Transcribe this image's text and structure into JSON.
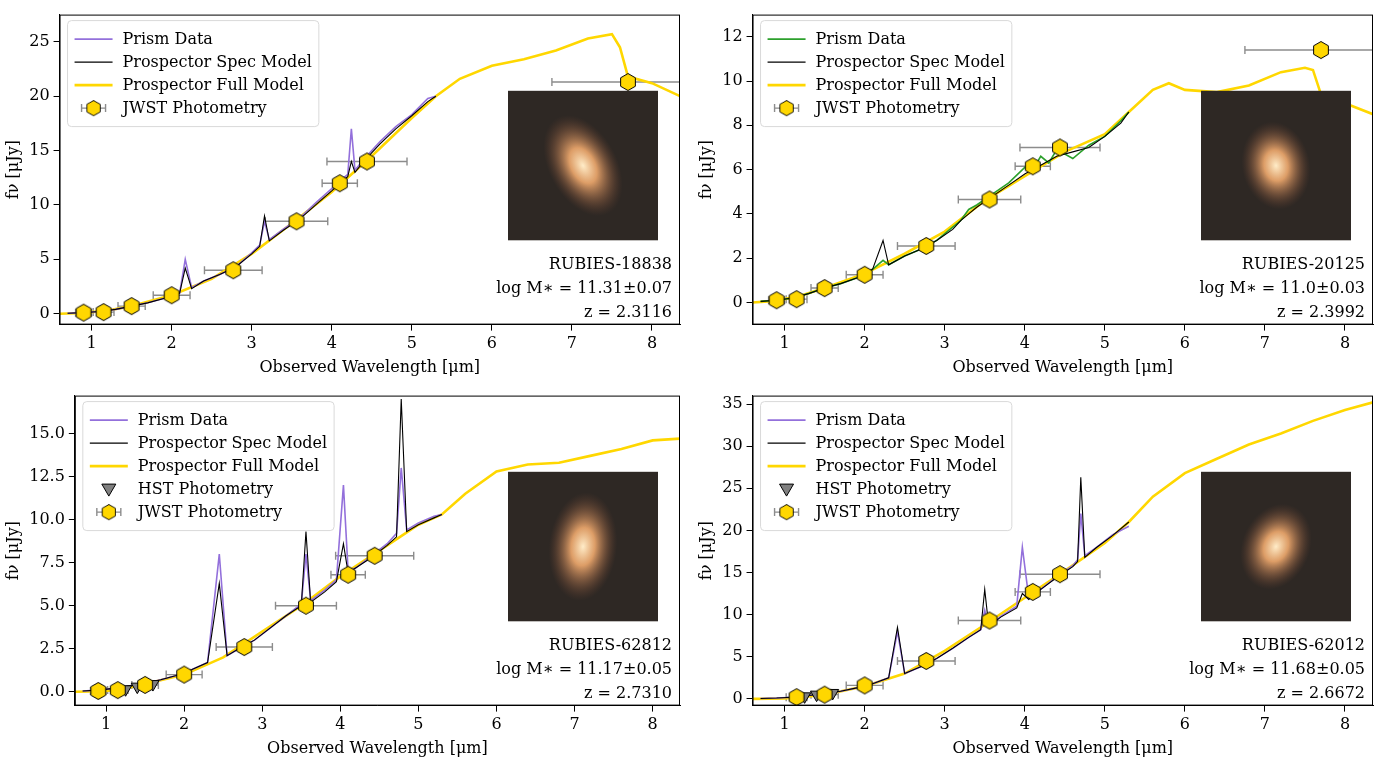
{
  "chart_data": [
    {
      "type": "line",
      "x_label": "Observed Wavelength [μm]",
      "y_label": "fν [μJy]",
      "annotations": [
        "RUBIES-18838",
        "log M∗ = 11.31±0.07",
        "z = 2.3116"
      ],
      "xlim": [
        0.6,
        8.35
      ],
      "xticks": [
        1,
        2,
        3,
        4,
        5,
        6,
        7,
        8
      ],
      "ylim": [
        -1,
        27.5
      ],
      "yticks": [
        0,
        5,
        10,
        15,
        20,
        25
      ],
      "legend": "upper left",
      "grid": false,
      "series": [
        {
          "name": "Prism Data",
          "color": "#9370db",
          "line_style": "solid",
          "x": [
            0.7,
            0.9,
            1.1,
            1.3,
            1.5,
            1.7,
            1.9,
            2.1,
            2.17,
            2.25,
            2.4,
            2.6,
            2.8,
            3.0,
            3.1,
            3.16,
            3.22,
            3.4,
            3.6,
            3.8,
            4.0,
            4.1,
            4.2,
            4.245,
            4.29,
            4.4,
            4.6,
            4.8,
            5.0,
            5.2,
            5.3
          ],
          "values": [
            0.05,
            0.1,
            0.2,
            0.4,
            0.7,
            1.0,
            1.4,
            1.9,
            5.0,
            2.4,
            3.0,
            3.6,
            4.3,
            5.6,
            6.3,
            8.5,
            6.8,
            7.8,
            8.8,
            10.2,
            11.5,
            12.2,
            12.8,
            17.0,
            13.2,
            14.2,
            15.8,
            17.2,
            18.3,
            19.8,
            20.0
          ]
        },
        {
          "name": "Prospector Spec Model",
          "color": "#000000",
          "line_style": "solid",
          "x": [
            0.7,
            0.9,
            1.1,
            1.3,
            1.5,
            1.7,
            1.9,
            2.1,
            2.17,
            2.25,
            2.4,
            2.6,
            2.8,
            3.0,
            3.1,
            3.16,
            3.22,
            3.4,
            3.6,
            3.8,
            4.0,
            4.1,
            4.2,
            4.245,
            4.29,
            4.4,
            4.6,
            4.8,
            5.0,
            5.2,
            5.3
          ],
          "values": [
            0.05,
            0.1,
            0.2,
            0.4,
            0.7,
            1.0,
            1.4,
            1.9,
            4.2,
            2.3,
            3.0,
            3.6,
            4.3,
            5.5,
            6.2,
            9.0,
            6.7,
            7.7,
            8.7,
            10.0,
            11.3,
            12.0,
            12.6,
            14.0,
            13.0,
            14.0,
            15.6,
            17.0,
            18.2,
            19.5,
            20.0
          ]
        },
        {
          "name": "Prospector Full Model",
          "color": "#ffd700",
          "line_style": "solid",
          "x": [
            0.6,
            0.8,
            1.0,
            1.2,
            1.5,
            2.0,
            2.5,
            3.0,
            3.5,
            4.0,
            4.5,
            5.0,
            5.3,
            5.6,
            6.0,
            6.4,
            6.8,
            7.2,
            7.5,
            7.6,
            7.7,
            8.0,
            8.35
          ],
          "values": [
            0.0,
            0.05,
            0.15,
            0.3,
            0.7,
            1.7,
            3.2,
            5.5,
            8.3,
            11.2,
            14.5,
            18.0,
            20.0,
            21.6,
            22.8,
            23.4,
            24.2,
            25.3,
            25.7,
            24.5,
            21.8,
            21.2,
            20.0
          ]
        },
        {
          "name": "JWST Photometry",
          "type": "scatter",
          "color": "#ffd700",
          "marker": "hexagon",
          "x": [
            0.9,
            1.15,
            1.5,
            2.0,
            2.77,
            3.56,
            4.1,
            4.44,
            7.7
          ],
          "values": [
            0.1,
            0.15,
            0.7,
            1.7,
            4.0,
            8.5,
            12.0,
            14.0,
            21.3
          ],
          "x_errors": [
            0.1,
            0.13,
            0.17,
            0.23,
            0.36,
            0.39,
            0.22,
            0.5,
            0.95
          ]
        }
      ]
    },
    {
      "type": "line",
      "x_label": "Observed Wavelength [μm]",
      "y_label": "fν [μJy]",
      "annotations": [
        "RUBIES-20125",
        "log M∗ = 11.0±0.03",
        "z = 2.3992"
      ],
      "xlim": [
        0.6,
        8.35
      ],
      "xticks": [
        1,
        2,
        3,
        4,
        5,
        6,
        7,
        8
      ],
      "ylim": [
        -1,
        13
      ],
      "yticks": [
        0,
        2,
        4,
        6,
        8,
        10,
        12
      ],
      "legend": "upper left",
      "grid": false,
      "series": [
        {
          "name": "Prism Data",
          "color": "#2ca02c",
          "line_style": "solid",
          "x": [
            0.7,
            0.9,
            1.1,
            1.3,
            1.5,
            1.7,
            1.9,
            2.1,
            2.23,
            2.3,
            2.5,
            2.7,
            2.9,
            3.1,
            3.2,
            3.3,
            3.4,
            3.6,
            3.8,
            4.0,
            4.1,
            4.2,
            4.3,
            4.4,
            4.6,
            4.8,
            5.0,
            5.2,
            5.3
          ],
          "values": [
            0.05,
            0.1,
            0.2,
            0.4,
            0.65,
            0.85,
            1.1,
            1.5,
            1.9,
            1.7,
            2.1,
            2.4,
            2.8,
            3.4,
            3.7,
            4.2,
            4.4,
            4.9,
            5.4,
            6.1,
            6.0,
            6.6,
            6.3,
            6.9,
            6.5,
            7.1,
            7.5,
            8.2,
            8.6
          ]
        },
        {
          "name": "Prospector Spec Model",
          "color": "#000000",
          "line_style": "solid",
          "x": [
            0.7,
            0.9,
            1.1,
            1.3,
            1.5,
            1.7,
            1.9,
            2.1,
            2.23,
            2.3,
            2.5,
            2.7,
            2.9,
            3.1,
            3.2,
            3.3,
            3.4,
            3.6,
            3.8,
            4.0,
            4.1,
            4.2,
            4.3,
            4.4,
            4.6,
            4.8,
            5.0,
            5.2,
            5.3
          ],
          "values": [
            0.05,
            0.1,
            0.2,
            0.4,
            0.65,
            0.85,
            1.1,
            1.5,
            2.8,
            1.7,
            2.1,
            2.4,
            2.8,
            3.3,
            3.7,
            4.0,
            4.3,
            4.8,
            5.3,
            5.8,
            6.0,
            6.2,
            6.4,
            6.6,
            6.8,
            7.0,
            7.5,
            8.1,
            8.6
          ]
        },
        {
          "name": "Prospector Full Model",
          "color": "#ffd700",
          "line_style": "solid",
          "x": [
            0.6,
            0.8,
            1.0,
            1.2,
            1.5,
            2.0,
            2.5,
            3.0,
            3.5,
            4.0,
            4.5,
            5.0,
            5.3,
            5.6,
            5.8,
            6.0,
            6.4,
            6.8,
            7.2,
            7.5,
            7.6,
            7.7,
            8.0,
            8.35
          ],
          "values": [
            0.0,
            0.05,
            0.15,
            0.3,
            0.65,
            1.3,
            2.2,
            3.2,
            4.6,
            5.7,
            6.8,
            7.6,
            8.6,
            9.6,
            9.9,
            9.6,
            9.5,
            9.8,
            10.4,
            10.6,
            10.5,
            9.4,
            9.0,
            8.5
          ]
        },
        {
          "name": "JWST Photometry",
          "type": "scatter",
          "color": "#ffd700",
          "marker": "hexagon",
          "x": [
            0.9,
            1.15,
            1.5,
            2.0,
            2.77,
            3.56,
            4.1,
            4.44,
            7.7
          ],
          "values": [
            0.1,
            0.15,
            0.65,
            1.25,
            2.55,
            4.65,
            6.15,
            7.0,
            11.4
          ],
          "x_errors": [
            0.1,
            0.13,
            0.17,
            0.23,
            0.36,
            0.39,
            0.22,
            0.5,
            0.95
          ]
        }
      ]
    },
    {
      "type": "line",
      "x_label": "Observed Wavelength [μm]",
      "y_label": "fν [μJy]",
      "annotations": [
        "RUBIES-62812",
        "log M∗ = 11.17±0.05",
        "z = 2.7310"
      ],
      "xlim": [
        0.6,
        8.35
      ],
      "xticks": [
        1,
        2,
        3,
        4,
        5,
        6,
        7,
        8
      ],
      "ylim": [
        -0.8,
        17.2
      ],
      "yticks": [
        {
          "value": 0,
          "label": "0.0"
        },
        {
          "value": 2.5,
          "label": "2.5"
        },
        {
          "value": 5,
          "label": "5.0"
        },
        {
          "value": 7.5,
          "label": "7.5"
        },
        {
          "value": 10,
          "label": "10.0"
        },
        {
          "value": 12.5,
          "label": "12.5"
        },
        {
          "value": 15,
          "label": "15.0"
        }
      ],
      "legend": "upper left",
      "grid": false,
      "series": [
        {
          "name": "Prism Data",
          "color": "#9370db",
          "line_style": "solid",
          "x": [
            0.7,
            0.9,
            1.1,
            1.3,
            1.5,
            1.7,
            1.9,
            2.1,
            2.3,
            2.45,
            2.55,
            2.7,
            2.9,
            3.1,
            3.3,
            3.5,
            3.56,
            3.62,
            3.8,
            3.95,
            4.04,
            4.1,
            4.2,
            4.4,
            4.6,
            4.72,
            4.78,
            4.85,
            5.0,
            5.2,
            5.3
          ],
          "values": [
            0.05,
            0.1,
            0.2,
            0.35,
            0.5,
            0.7,
            0.95,
            1.3,
            1.7,
            8.0,
            2.1,
            2.5,
            3.0,
            3.7,
            4.4,
            5.1,
            8.0,
            5.3,
            5.9,
            6.5,
            12.0,
            7.0,
            7.2,
            7.9,
            8.6,
            9.2,
            13.0,
            9.4,
            9.8,
            10.2,
            10.3
          ]
        },
        {
          "name": "Prospector Spec Model",
          "color": "#000000",
          "line_style": "solid",
          "x": [
            0.7,
            0.9,
            1.1,
            1.3,
            1.5,
            1.7,
            1.9,
            2.1,
            2.3,
            2.45,
            2.55,
            2.7,
            2.9,
            3.1,
            3.3,
            3.5,
            3.56,
            3.62,
            3.8,
            3.95,
            4.04,
            4.1,
            4.2,
            4.4,
            4.6,
            4.72,
            4.78,
            4.85,
            5.0,
            5.2,
            5.3
          ],
          "values": [
            0.05,
            0.1,
            0.2,
            0.35,
            0.5,
            0.7,
            0.95,
            1.3,
            1.7,
            6.3,
            2.1,
            2.5,
            3.0,
            3.7,
            4.4,
            5.0,
            9.3,
            5.2,
            5.8,
            6.4,
            8.6,
            6.9,
            7.2,
            7.8,
            8.5,
            9.0,
            17.0,
            9.3,
            9.7,
            10.1,
            10.3
          ]
        },
        {
          "name": "Prospector Full Model",
          "color": "#ffd700",
          "line_style": "solid",
          "x": [
            0.6,
            0.8,
            1.0,
            1.2,
            1.5,
            2.0,
            2.5,
            3.0,
            3.5,
            4.0,
            4.5,
            5.0,
            5.3,
            5.6,
            6.0,
            6.4,
            6.8,
            7.2,
            7.6,
            8.0,
            8.35
          ],
          "values": [
            0.0,
            0.02,
            0.05,
            0.15,
            0.45,
            1.0,
            2.0,
            3.5,
            5.0,
            6.7,
            8.2,
            9.7,
            10.3,
            11.5,
            12.8,
            13.2,
            13.3,
            13.7,
            14.1,
            14.6,
            14.7
          ]
        },
        {
          "name": "HST Photometry",
          "type": "scatter",
          "color": "#808080",
          "marker": "triangle_down",
          "x": [
            1.25,
            1.4,
            1.6
          ],
          "values": [
            0.15,
            0.3,
            0.45
          ]
        },
        {
          "name": "JWST Photometry",
          "type": "scatter",
          "color": "#ffd700",
          "marker": "hexagon",
          "x": [
            0.9,
            1.15,
            1.5,
            2.0,
            2.77,
            3.56,
            4.1,
            4.44
          ],
          "values": [
            0.05,
            0.1,
            0.4,
            1.0,
            2.6,
            5.0,
            6.8,
            7.9
          ],
          "x_errors": [
            0.1,
            0.13,
            0.17,
            0.23,
            0.36,
            0.39,
            0.22,
            0.5
          ]
        }
      ]
    },
    {
      "type": "line",
      "x_label": "Observed Wavelength [μm]",
      "y_label": "fν [μJy]",
      "annotations": [
        "RUBIES-62012",
        "log M∗ = 11.68±0.05",
        "z = 2.6672"
      ],
      "xlim": [
        0.6,
        8.35
      ],
      "xticks": [
        1,
        2,
        3,
        4,
        5,
        6,
        7,
        8
      ],
      "ylim": [
        -0.8,
        36
      ],
      "yticks": [
        0,
        5,
        10,
        15,
        20,
        25,
        30,
        35
      ],
      "legend": "upper left",
      "grid": false,
      "series": [
        {
          "name": "Prism Data",
          "color": "#9370db",
          "line_style": "solid",
          "x": [
            0.7,
            0.9,
            1.1,
            1.3,
            1.5,
            1.7,
            1.9,
            2.1,
            2.3,
            2.41,
            2.5,
            2.7,
            2.9,
            3.1,
            3.3,
            3.45,
            3.5,
            3.55,
            3.7,
            3.9,
            3.97,
            4.05,
            4.2,
            4.4,
            4.6,
            4.66,
            4.7,
            4.75,
            4.9,
            5.1,
            5.3
          ],
          "values": [
            0.05,
            0.1,
            0.2,
            0.4,
            0.6,
            0.9,
            1.3,
            1.8,
            2.5,
            8.0,
            3.0,
            3.8,
            4.8,
            6.0,
            7.3,
            8.2,
            10.5,
            8.6,
            9.8,
            11.0,
            18.0,
            12.0,
            13.0,
            14.5,
            15.8,
            16.5,
            22.0,
            17.0,
            18.0,
            19.5,
            20.5
          ]
        },
        {
          "name": "Prospector Spec Model",
          "color": "#000000",
          "line_style": "solid",
          "x": [
            0.7,
            0.9,
            1.1,
            1.3,
            1.5,
            1.7,
            1.9,
            2.1,
            2.3,
            2.41,
            2.5,
            2.7,
            2.9,
            3.1,
            3.3,
            3.45,
            3.5,
            3.55,
            3.7,
            3.9,
            3.97,
            4.05,
            4.2,
            4.4,
            4.6,
            4.66,
            4.7,
            4.75,
            4.9,
            5.1,
            5.3
          ],
          "values": [
            0.05,
            0.1,
            0.2,
            0.4,
            0.6,
            0.9,
            1.3,
            1.8,
            2.5,
            8.5,
            3.0,
            3.8,
            4.8,
            6.0,
            7.3,
            8.2,
            13.0,
            8.6,
            9.7,
            10.8,
            12.5,
            11.8,
            13.0,
            14.4,
            15.7,
            16.3,
            26.3,
            16.8,
            18.0,
            19.4,
            21.0
          ]
        },
        {
          "name": "Prospector Full Model",
          "color": "#ffd700",
          "line_style": "solid",
          "x": [
            0.6,
            0.8,
            1.0,
            1.2,
            1.5,
            2.0,
            2.5,
            3.0,
            3.5,
            4.0,
            4.5,
            5.0,
            5.3,
            5.6,
            6.0,
            6.4,
            6.8,
            7.2,
            7.6,
            8.0,
            8.35
          ],
          "values": [
            0.0,
            0.02,
            0.05,
            0.2,
            0.5,
            1.5,
            3.0,
            5.7,
            8.8,
            12.0,
            15.2,
            18.5,
            21.0,
            24.0,
            26.8,
            28.5,
            30.2,
            31.5,
            33.0,
            34.3,
            35.2
          ]
        },
        {
          "name": "HST Photometry",
          "type": "scatter",
          "color": "#808080",
          "marker": "triangle_down",
          "x": [
            1.25,
            1.4,
            1.6
          ],
          "values": [
            0.3,
            0.5,
            0.7
          ]
        },
        {
          "name": "JWST Photometry",
          "type": "scatter",
          "color": "#ffd700",
          "marker": "hexagon",
          "x": [
            1.15,
            1.5,
            2.0,
            2.77,
            3.56,
            4.1,
            4.44
          ],
          "values": [
            0.2,
            0.5,
            1.6,
            4.5,
            9.3,
            12.7,
            14.8
          ],
          "x_errors": [
            0.13,
            0.17,
            0.23,
            0.36,
            0.39,
            0.22,
            0.5
          ]
        }
      ]
    }
  ]
}
